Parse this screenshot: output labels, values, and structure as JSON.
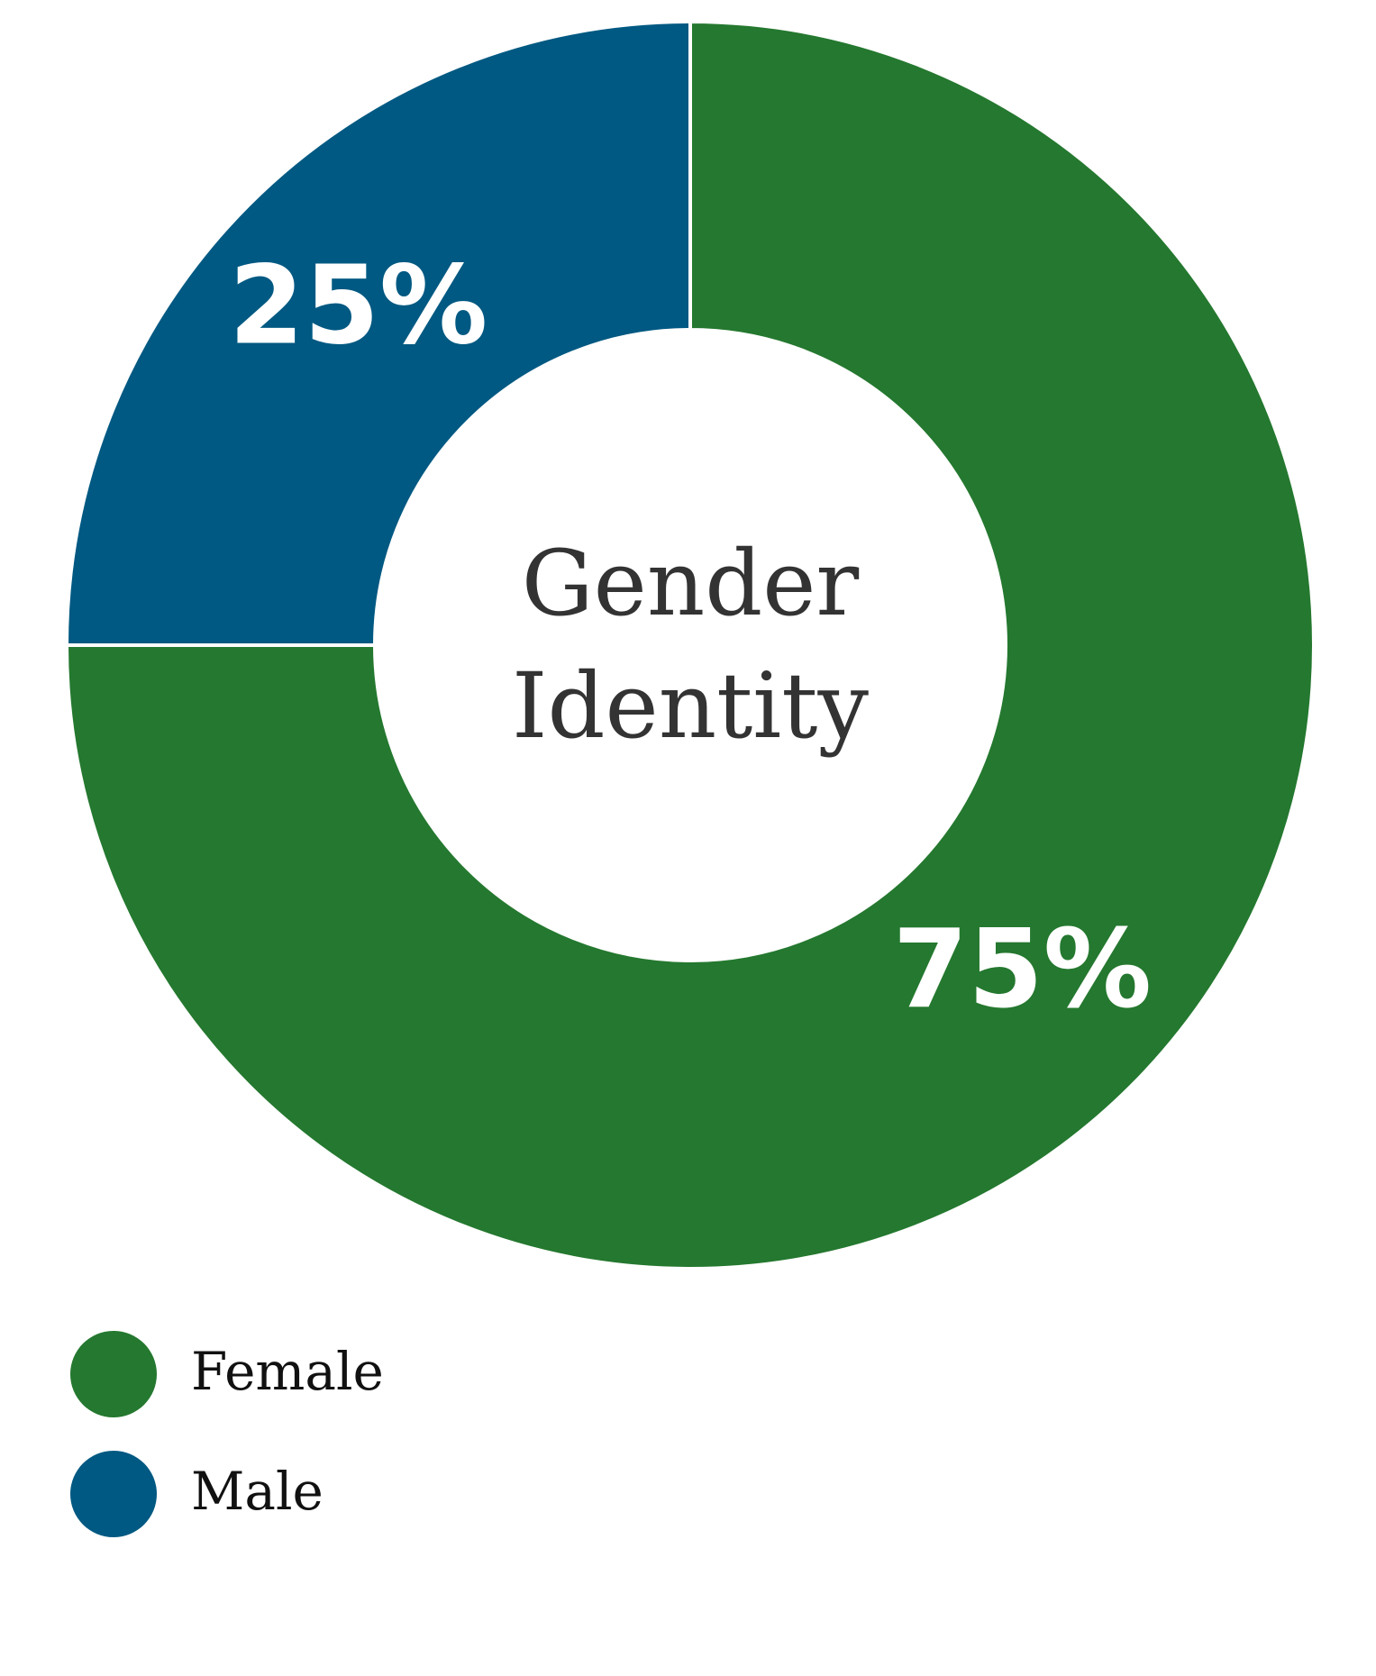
{
  "chart_data": {
    "type": "donut",
    "title": "Gender Identity",
    "categories": [
      "Female",
      "Male"
    ],
    "values": [
      75,
      25
    ],
    "value_labels": [
      "75%",
      "25%"
    ],
    "colors": [
      "#24782f",
      "#005982"
    ],
    "legend": "bottom-left"
  }
}
